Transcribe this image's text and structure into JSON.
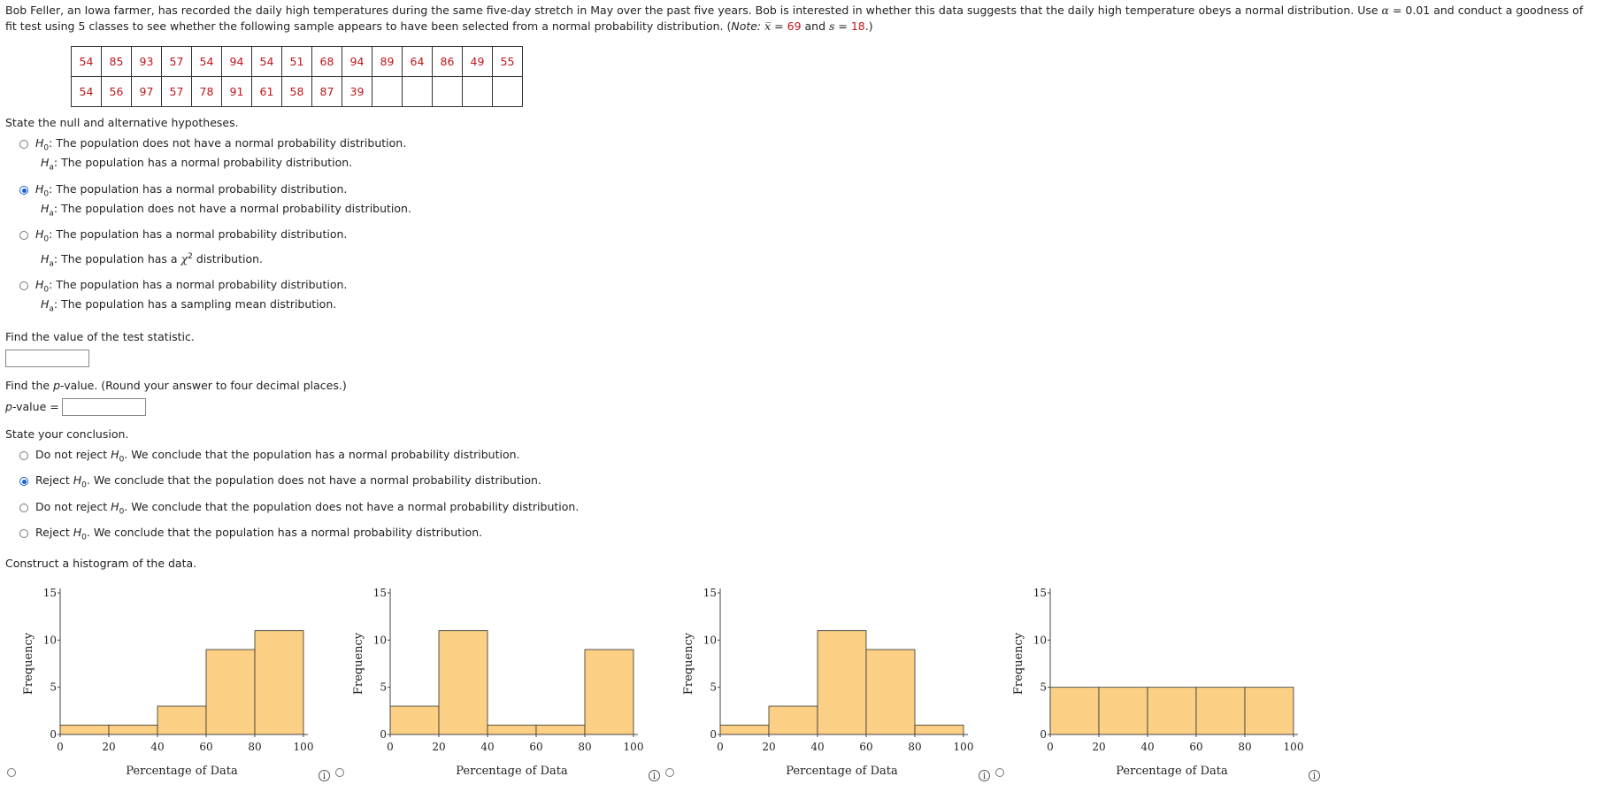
{
  "intro": {
    "part1": "Bob Feller, an Iowa farmer, has recorded the daily high temperatures during the same five-day stretch in May over the past five years. Bob is interested in whether this data suggests that the daily high temperature obeys a normal distribution. Use ",
    "alpha_sym": "α",
    "alpha_eq": " = 0.01 and conduct a goodness of fit test using 5 classes to see whether the following sample appears to have been selected from a normal probability distribution. (",
    "note": "Note:",
    "xbar": "x̅",
    "xbar_eq": " = ",
    "xbar_val": "69",
    "and": " and ",
    "s": "s",
    "s_eq": " = ",
    "s_val": "18",
    "end": ".)"
  },
  "table": {
    "rows": [
      [
        "54",
        "85",
        "93",
        "57",
        "54",
        "94",
        "54",
        "51",
        "68",
        "94",
        "89",
        "64",
        "86",
        "49",
        "55"
      ],
      [
        "54",
        "56",
        "97",
        "57",
        "78",
        "91",
        "61",
        "58",
        "87",
        "39",
        "",
        "",
        "",
        "",
        ""
      ]
    ]
  },
  "hypotheses": {
    "prompt": "State the null and alternative hypotheses.",
    "h0": "H",
    "h0_sub": "0",
    "ha": "H",
    "ha_sub": "a",
    "options": [
      {
        "h0_text": ": The population does not have a normal probability distribution.",
        "ha_text": ": The population has a normal probability distribution.",
        "selected": false
      },
      {
        "h0_text": ": The population has a normal probability distribution.",
        "ha_text": ": The population does not have a normal probability distribution.",
        "selected": true
      },
      {
        "h0_text": ": The population has a normal probability distribution.",
        "ha_text_pre": ": The population has a ",
        "chi": "χ",
        "chi_sup": "2",
        "ha_text_post": " distribution.",
        "selected": false
      },
      {
        "h0_text": ": The population has a normal probability distribution.",
        "ha_text": ": The population has a sampling mean distribution.",
        "selected": false
      }
    ]
  },
  "test_stat": {
    "prompt": "Find the value of the test statistic.",
    "value": ""
  },
  "pvalue": {
    "prompt_pre": "Find the ",
    "p": "p",
    "prompt_post": "-value. (Round your answer to four decimal places.)",
    "label_p": "p",
    "label_rest": "-value =",
    "value": ""
  },
  "conclusion": {
    "prompt": "State your conclusion.",
    "options": [
      {
        "pre": "Do not reject ",
        "post": ". We conclude that the population has a normal probability distribution.",
        "selected": false
      },
      {
        "pre": "Reject ",
        "post": ". We conclude that the population does not have a normal probability distribution.",
        "selected": true
      },
      {
        "pre": "Do not reject ",
        "post": ". We conclude that the population does not have a normal probability distribution.",
        "selected": false
      },
      {
        "pre": "Reject ",
        "post": ". We conclude that the population has a normal probability distribution.",
        "selected": false
      }
    ]
  },
  "histogram": {
    "prompt": "Construct a histogram of the data.",
    "info_glyph": "i"
  },
  "colors": {
    "bar_fill": "#fbcf84",
    "bar_stroke": "#333333",
    "accent_red": "#c0161b",
    "radio_selected": "#1a5fd0"
  },
  "chart_data": [
    {
      "type": "bar",
      "bins": [
        [
          0,
          20
        ],
        [
          20,
          40
        ],
        [
          40,
          60
        ],
        [
          60,
          80
        ],
        [
          80,
          100
        ]
      ],
      "values": [
        1,
        1,
        3,
        9,
        11
      ],
      "xlabel": "Percentage of Data",
      "ylabel": "Frequency",
      "xticks": [
        "0",
        "20",
        "40",
        "60",
        "80",
        "100"
      ],
      "yticks": [
        "0",
        "5",
        "10",
        "15"
      ],
      "ylim": [
        0,
        15
      ],
      "xlim": [
        0,
        100
      ],
      "selected": false
    },
    {
      "type": "bar",
      "bins": [
        [
          0,
          20
        ],
        [
          20,
          40
        ],
        [
          40,
          60
        ],
        [
          60,
          80
        ],
        [
          80,
          100
        ]
      ],
      "values": [
        3,
        11,
        1,
        1,
        9
      ],
      "xlabel": "Percentage of Data",
      "ylabel": "Frequency",
      "xticks": [
        "0",
        "20",
        "40",
        "60",
        "80",
        "100"
      ],
      "yticks": [
        "0",
        "5",
        "10",
        "15"
      ],
      "ylim": [
        0,
        15
      ],
      "xlim": [
        0,
        100
      ],
      "selected": false
    },
    {
      "type": "bar",
      "bins": [
        [
          0,
          20
        ],
        [
          20,
          40
        ],
        [
          40,
          60
        ],
        [
          60,
          80
        ],
        [
          80,
          100
        ]
      ],
      "values": [
        1,
        3,
        11,
        9,
        1
      ],
      "xlabel": "Percentage of Data",
      "ylabel": "Frequency",
      "xticks": [
        "0",
        "20",
        "40",
        "60",
        "80",
        "100"
      ],
      "yticks": [
        "0",
        "5",
        "10",
        "15"
      ],
      "ylim": [
        0,
        15
      ],
      "xlim": [
        0,
        100
      ],
      "selected": false
    },
    {
      "type": "bar",
      "bins": [
        [
          0,
          20
        ],
        [
          20,
          40
        ],
        [
          40,
          60
        ],
        [
          60,
          80
        ],
        [
          80,
          100
        ]
      ],
      "values": [
        5,
        5,
        5,
        5,
        5
      ],
      "xlabel": "Percentage of Data",
      "ylabel": "Frequency",
      "xticks": [
        "0",
        "20",
        "40",
        "60",
        "80",
        "100"
      ],
      "yticks": [
        "0",
        "5",
        "10",
        "15"
      ],
      "ylim": [
        0,
        15
      ],
      "xlim": [
        0,
        100
      ],
      "selected": false
    }
  ]
}
